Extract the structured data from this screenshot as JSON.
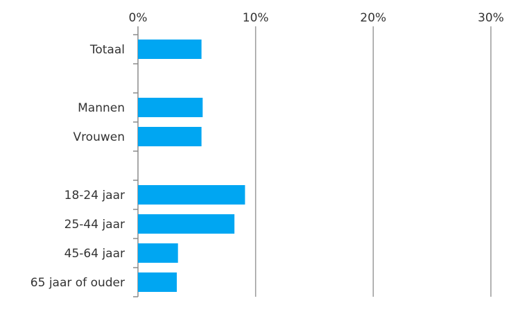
{
  "chart_data": {
    "type": "bar",
    "orientation": "horizontal",
    "xlim": [
      0,
      30
    ],
    "x_ticks": [
      {
        "value": 0,
        "label": "0%"
      },
      {
        "value": 10,
        "label": "10%"
      },
      {
        "value": 20,
        "label": "20%"
      },
      {
        "value": 30,
        "label": "30%"
      }
    ],
    "x_axis_position": "top",
    "grid": true,
    "legend": "none",
    "bar_color": "#00a6f2",
    "categories": [
      "Totaal",
      "",
      "Mannen",
      "Vrouwen",
      "",
      "18-24 jaar",
      "25-44 jaar",
      "45-64 jaar",
      "65 jaar of ouder"
    ],
    "values": [
      5.4,
      null,
      5.5,
      5.4,
      null,
      9.1,
      8.2,
      3.4,
      3.3
    ]
  }
}
